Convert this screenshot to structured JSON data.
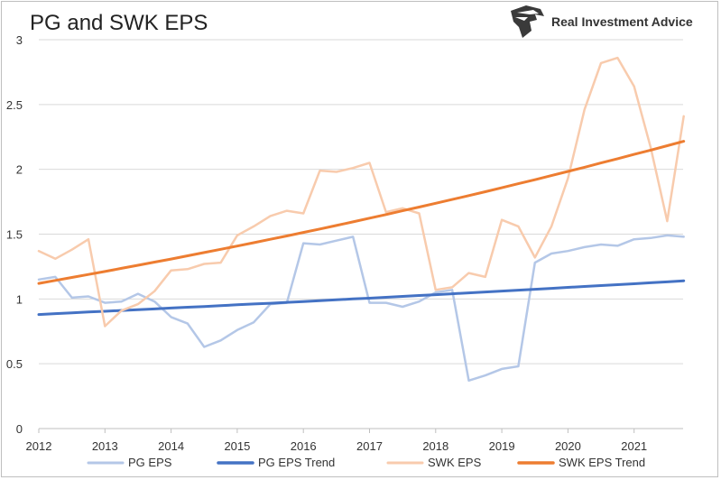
{
  "header": {
    "title": "PG and SWK EPS",
    "brand": "Real Investment Advice",
    "brand_icon": "eagle-head-logo"
  },
  "chart_data": {
    "type": "line",
    "title": "PG and SWK EPS",
    "xlabel": "",
    "ylabel": "",
    "xlim": [
      2012,
      2021.8
    ],
    "ylim": [
      0,
      3
    ],
    "x_ticks": [
      "2012",
      "2013",
      "2014",
      "2015",
      "2016",
      "2017",
      "2018",
      "2019",
      "2020",
      "2021"
    ],
    "y_ticks": [
      "0",
      "0.5",
      "1",
      "1.5",
      "2",
      "2.5",
      "3"
    ],
    "grid": "horizontal",
    "legend_position": "bottom",
    "x": [
      2012.0,
      2012.25,
      2012.5,
      2012.75,
      2013.0,
      2013.25,
      2013.5,
      2013.75,
      2014.0,
      2014.25,
      2014.5,
      2014.75,
      2015.0,
      2015.25,
      2015.5,
      2015.75,
      2016.0,
      2016.25,
      2016.5,
      2016.75,
      2017.0,
      2017.25,
      2017.5,
      2017.75,
      2018.0,
      2018.25,
      2018.5,
      2018.75,
      2019.0,
      2019.25,
      2019.5,
      2019.75,
      2020.0,
      2020.25,
      2020.5,
      2020.75,
      2021.0,
      2021.25,
      2021.5,
      2021.75
    ],
    "series": [
      {
        "name": "PG EPS",
        "color": "#b4c7e7",
        "width": 2.5,
        "values": [
          1.15,
          1.17,
          1.01,
          1.02,
          0.97,
          0.98,
          1.04,
          0.98,
          0.86,
          0.81,
          0.63,
          0.68,
          0.76,
          0.82,
          0.96,
          0.97,
          1.43,
          1.42,
          1.45,
          1.48,
          0.97,
          0.97,
          0.94,
          0.98,
          1.05,
          1.07,
          0.37,
          0.41,
          0.46,
          0.48,
          1.28,
          1.35,
          1.37,
          1.4,
          1.42,
          1.41,
          1.46,
          1.47,
          1.49,
          1.48
        ]
      },
      {
        "name": "PG EPS Trend",
        "color": "#4472c4",
        "width": 3,
        "values": [
          0.88,
          0.887,
          0.893,
          0.899,
          0.905,
          0.911,
          0.917,
          0.923,
          0.93,
          0.936,
          0.942,
          0.948,
          0.955,
          0.961,
          0.967,
          0.974,
          0.98,
          0.987,
          0.993,
          1.0,
          1.006,
          1.013,
          1.02,
          1.027,
          1.033,
          1.04,
          1.047,
          1.054,
          1.061,
          1.068,
          1.075,
          1.082,
          1.089,
          1.096,
          1.103,
          1.11,
          1.117,
          1.125,
          1.132,
          1.14
        ]
      },
      {
        "name": "SWK EPS",
        "color": "#f8cbad",
        "width": 2.5,
        "values": [
          1.37,
          1.31,
          1.38,
          1.46,
          0.79,
          0.91,
          0.96,
          1.06,
          1.22,
          1.23,
          1.27,
          1.28,
          1.49,
          1.56,
          1.64,
          1.68,
          1.66,
          1.99,
          1.98,
          2.01,
          2.05,
          1.67,
          1.7,
          1.66,
          1.07,
          1.09,
          1.2,
          1.17,
          1.61,
          1.56,
          1.32,
          1.56,
          1.93,
          2.46,
          2.82,
          2.86,
          2.64,
          2.17,
          1.6,
          2.41
        ]
      },
      {
        "name": "SWK EPS Trend",
        "color": "#ed7d31",
        "width": 3,
        "values": [
          1.12,
          1.143,
          1.166,
          1.189,
          1.212,
          1.236,
          1.26,
          1.284,
          1.308,
          1.333,
          1.358,
          1.383,
          1.408,
          1.434,
          1.46,
          1.486,
          1.513,
          1.54,
          1.567,
          1.595,
          1.623,
          1.651,
          1.68,
          1.709,
          1.738,
          1.767,
          1.797,
          1.827,
          1.858,
          1.889,
          1.92,
          1.952,
          1.984,
          2.016,
          2.049,
          2.082,
          2.115,
          2.148,
          2.182,
          2.216
        ]
      }
    ]
  }
}
